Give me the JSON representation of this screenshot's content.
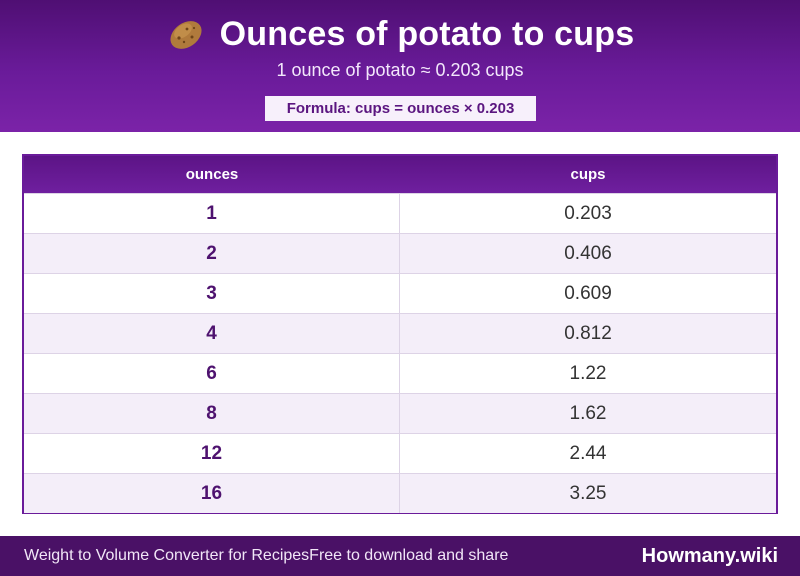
{
  "header": {
    "title": "Ounces of potato to cups",
    "subtitle": "1 ounce of potato ≈ 0.203 cups",
    "formula": "Formula: cups = ounces × 0.203",
    "icon": "potato-icon"
  },
  "table": {
    "columns": [
      "ounces",
      "cups"
    ],
    "rows": [
      {
        "ounces": "1",
        "cups": "0.203"
      },
      {
        "ounces": "2",
        "cups": "0.406"
      },
      {
        "ounces": "3",
        "cups": "0.609"
      },
      {
        "ounces": "4",
        "cups": "0.812"
      },
      {
        "ounces": "6",
        "cups": "1.22"
      },
      {
        "ounces": "8",
        "cups": "1.62"
      },
      {
        "ounces": "12",
        "cups": "2.44"
      },
      {
        "ounces": "16",
        "cups": "3.25"
      }
    ]
  },
  "footer": {
    "left_text": "Weight to Volume Converter for RecipesFree to download and share",
    "brand": "Howmany.wiki"
  },
  "colors": {
    "accent": "#6a1b9a",
    "header_dark": "#4f0f73",
    "footer": "#4a1166",
    "row_alt": "#f4eef9"
  }
}
